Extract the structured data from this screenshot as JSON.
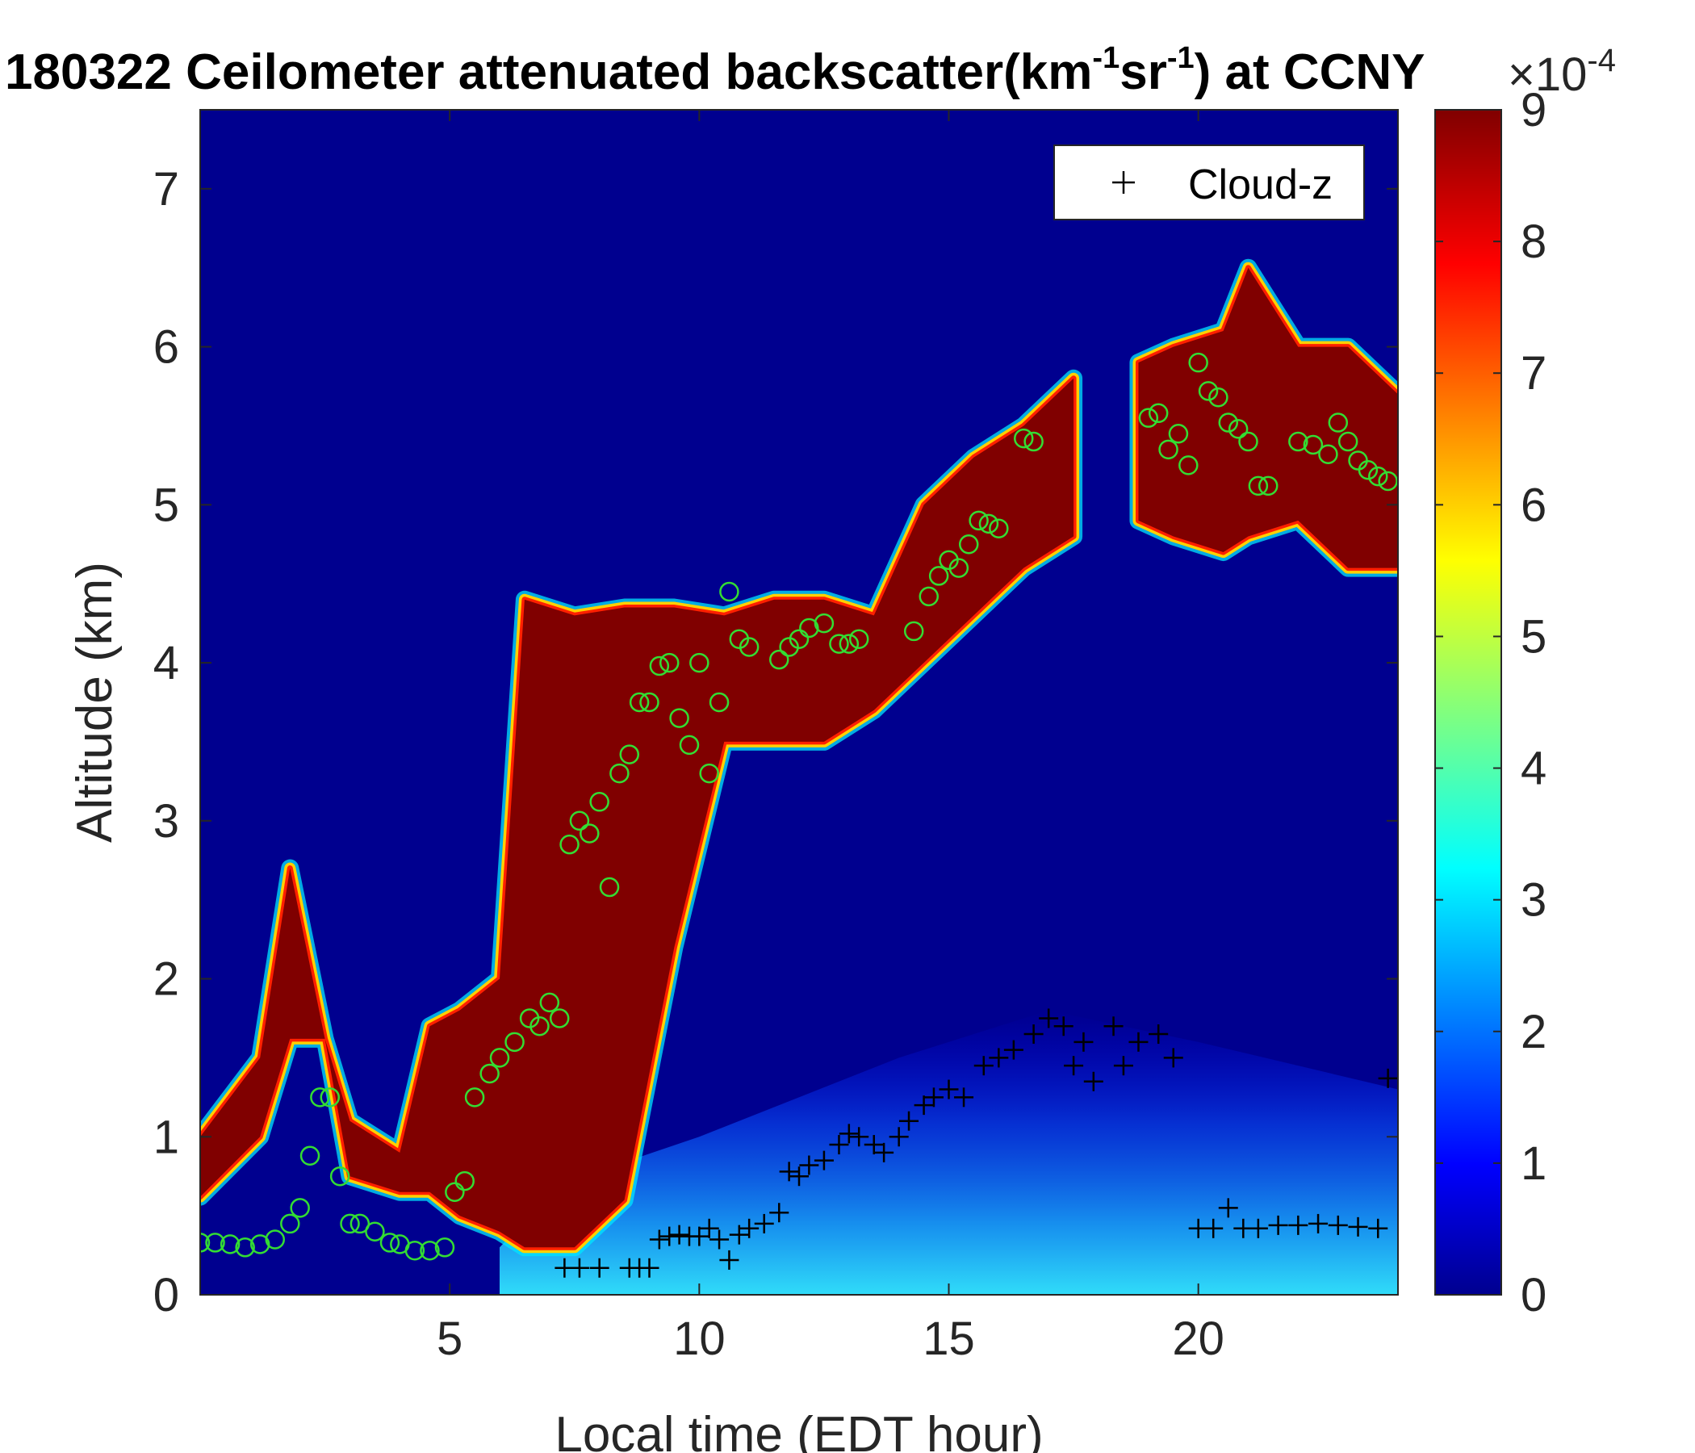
{
  "chart_data": {
    "type": "heatmap",
    "title": {
      "prefix": "180322 Ceilometer attenuated backscatter(km",
      "exp1": "-1",
      "mid": "sr",
      "exp2": "-1",
      "suffix": ") at CCNY"
    },
    "xlabel": "Local time (EDT hour)",
    "ylabel": "Altitude (km)",
    "xlim": [
      0,
      24
    ],
    "ylim": [
      0,
      7.5
    ],
    "xticks": [
      5,
      10,
      15,
      20
    ],
    "yticks": [
      0,
      1,
      2,
      3,
      4,
      5,
      6,
      7
    ],
    "colorbar": {
      "colormap": "jet",
      "clim": [
        0,
        9
      ],
      "ticks": [
        0,
        1,
        2,
        3,
        4,
        5,
        6,
        7,
        8,
        9
      ],
      "multiplier_base": "×10",
      "multiplier_exp": "-4"
    },
    "legend": {
      "label": "Cloud-z",
      "marker": "+",
      "location": "top-right"
    },
    "colors": {
      "background": "#00008f",
      "cloud_marker": "#000000",
      "pbl_marker": "#33dd33"
    },
    "layers": {
      "cloud_layer": [
        [
          0,
          0.62,
          1.0
        ],
        [
          1.2,
          1.0,
          1.5
        ],
        [
          1.8,
          1.62,
          2.7
        ],
        [
          2.5,
          1.62,
          1.62
        ],
        [
          3.0,
          0.75,
          1.1
        ],
        [
          4.0,
          0.65,
          0.9
        ],
        [
          4.6,
          0.65,
          1.7
        ],
        [
          5.2,
          0.5,
          1.8
        ],
        [
          6.0,
          0.4,
          2.0
        ],
        [
          6.5,
          0.3,
          4.4
        ],
        [
          7.5,
          0.3,
          4.3
        ],
        [
          8.5,
          0.6,
          4.35
        ],
        [
          9.5,
          2.2,
          4.35
        ],
        [
          10.5,
          3.5,
          4.3
        ],
        [
          11.5,
          3.5,
          4.4
        ],
        [
          12.5,
          3.5,
          4.4
        ],
        [
          13.5,
          3.7,
          4.3
        ],
        [
          14.5,
          4.0,
          5.0
        ],
        [
          15.5,
          4.3,
          5.3
        ],
        [
          16.5,
          4.6,
          5.5
        ],
        [
          17.5,
          4.8,
          5.8
        ]
      ],
      "high_cloud": [
        [
          18.8,
          4.9,
          5.9
        ],
        [
          19.5,
          4.8,
          6.0
        ],
        [
          20.5,
          4.7,
          6.1
        ],
        [
          21.0,
          4.8,
          6.5
        ],
        [
          22.0,
          4.9,
          6.0
        ],
        [
          23.0,
          4.6,
          6.0
        ],
        [
          24.0,
          4.6,
          5.7
        ]
      ],
      "aerosol_layer_top_km": [
        [
          6,
          0.3
        ],
        [
          7.2,
          0.7
        ],
        [
          10,
          1.0
        ],
        [
          14,
          1.5
        ],
        [
          17,
          1.8
        ],
        [
          20,
          1.6
        ],
        [
          24,
          1.3
        ]
      ]
    },
    "series": [
      {
        "name": "Cloud-z",
        "marker": "+",
        "points": [
          [
            7.3,
            0.17
          ],
          [
            7.6,
            0.17
          ],
          [
            8.0,
            0.17
          ],
          [
            8.6,
            0.17
          ],
          [
            8.8,
            0.17
          ],
          [
            9.0,
            0.17
          ],
          [
            9.2,
            0.35
          ],
          [
            9.4,
            0.37
          ],
          [
            9.6,
            0.38
          ],
          [
            9.8,
            0.37
          ],
          [
            10.0,
            0.37
          ],
          [
            10.2,
            0.42
          ],
          [
            10.4,
            0.35
          ],
          [
            10.6,
            0.22
          ],
          [
            10.8,
            0.38
          ],
          [
            11.0,
            0.42
          ],
          [
            11.3,
            0.45
          ],
          [
            11.6,
            0.52
          ],
          [
            11.8,
            0.78
          ],
          [
            12.0,
            0.75
          ],
          [
            12.2,
            0.82
          ],
          [
            12.5,
            0.85
          ],
          [
            12.8,
            0.95
          ],
          [
            13.0,
            1.02
          ],
          [
            13.2,
            1.0
          ],
          [
            13.5,
            0.95
          ],
          [
            13.7,
            0.9
          ],
          [
            14.0,
            1.0
          ],
          [
            14.2,
            1.1
          ],
          [
            14.5,
            1.2
          ],
          [
            14.7,
            1.25
          ],
          [
            15.0,
            1.3
          ],
          [
            15.3,
            1.25
          ],
          [
            15.7,
            1.45
          ],
          [
            16.0,
            1.5
          ],
          [
            16.3,
            1.55
          ],
          [
            16.7,
            1.65
          ],
          [
            17.0,
            1.75
          ],
          [
            17.3,
            1.7
          ],
          [
            17.5,
            1.45
          ],
          [
            17.7,
            1.6
          ],
          [
            17.9,
            1.35
          ],
          [
            18.3,
            1.7
          ],
          [
            18.5,
            1.45
          ],
          [
            18.8,
            1.6
          ],
          [
            19.2,
            1.65
          ],
          [
            19.5,
            1.5
          ],
          [
            20.0,
            0.42
          ],
          [
            20.3,
            0.42
          ],
          [
            20.6,
            0.55
          ],
          [
            20.9,
            0.42
          ],
          [
            21.2,
            0.42
          ],
          [
            21.6,
            0.44
          ],
          [
            22.0,
            0.44
          ],
          [
            22.4,
            0.45
          ],
          [
            22.8,
            0.44
          ],
          [
            23.2,
            0.43
          ],
          [
            23.6,
            0.42
          ],
          [
            23.8,
            1.37
          ]
        ]
      },
      {
        "name": "",
        "marker": "o",
        "points": [
          [
            0.0,
            0.33
          ],
          [
            0.3,
            0.33
          ],
          [
            0.6,
            0.32
          ],
          [
            0.9,
            0.3
          ],
          [
            1.2,
            0.32
          ],
          [
            1.5,
            0.35
          ],
          [
            1.8,
            0.45
          ],
          [
            2.0,
            0.55
          ],
          [
            2.2,
            0.88
          ],
          [
            2.4,
            1.25
          ],
          [
            2.6,
            1.25
          ],
          [
            2.8,
            0.75
          ],
          [
            3.0,
            0.45
          ],
          [
            3.2,
            0.45
          ],
          [
            3.5,
            0.4
          ],
          [
            3.8,
            0.33
          ],
          [
            4.0,
            0.32
          ],
          [
            4.3,
            0.28
          ],
          [
            4.6,
            0.28
          ],
          [
            4.9,
            0.3
          ],
          [
            5.1,
            0.65
          ],
          [
            5.3,
            0.72
          ],
          [
            5.5,
            1.25
          ],
          [
            5.8,
            1.4
          ],
          [
            6.0,
            1.5
          ],
          [
            6.3,
            1.6
          ],
          [
            6.6,
            1.75
          ],
          [
            6.8,
            1.7
          ],
          [
            7.0,
            1.85
          ],
          [
            7.2,
            1.75
          ],
          [
            7.4,
            2.85
          ],
          [
            7.6,
            3.0
          ],
          [
            7.8,
            2.92
          ],
          [
            8.0,
            3.12
          ],
          [
            8.2,
            2.58
          ],
          [
            8.4,
            3.3
          ],
          [
            8.6,
            3.42
          ],
          [
            8.8,
            3.75
          ],
          [
            9.0,
            3.75
          ],
          [
            9.2,
            3.98
          ],
          [
            9.4,
            4.0
          ],
          [
            9.6,
            3.65
          ],
          [
            9.8,
            3.48
          ],
          [
            10.0,
            4.0
          ],
          [
            10.2,
            3.3
          ],
          [
            10.4,
            3.75
          ],
          [
            10.6,
            4.45
          ],
          [
            10.8,
            4.15
          ],
          [
            11.0,
            4.1
          ],
          [
            11.6,
            4.02
          ],
          [
            11.8,
            4.1
          ],
          [
            12.0,
            4.15
          ],
          [
            12.2,
            4.22
          ],
          [
            12.5,
            4.25
          ],
          [
            12.8,
            4.12
          ],
          [
            13.0,
            4.12
          ],
          [
            13.2,
            4.15
          ],
          [
            14.3,
            4.2
          ],
          [
            14.6,
            4.42
          ],
          [
            14.8,
            4.55
          ],
          [
            15.0,
            4.65
          ],
          [
            15.2,
            4.6
          ],
          [
            15.4,
            4.75
          ],
          [
            15.6,
            4.9
          ],
          [
            15.8,
            4.88
          ],
          [
            16.0,
            4.85
          ],
          [
            16.5,
            5.42
          ],
          [
            16.7,
            5.4
          ],
          [
            19.0,
            5.55
          ],
          [
            19.2,
            5.58
          ],
          [
            19.4,
            5.35
          ],
          [
            19.6,
            5.45
          ],
          [
            19.8,
            5.25
          ],
          [
            20.0,
            5.9
          ],
          [
            20.2,
            5.72
          ],
          [
            20.4,
            5.68
          ],
          [
            20.6,
            5.52
          ],
          [
            20.8,
            5.48
          ],
          [
            21.0,
            5.4
          ],
          [
            21.2,
            5.12
          ],
          [
            21.4,
            5.12
          ],
          [
            22.0,
            5.4
          ],
          [
            22.3,
            5.38
          ],
          [
            22.6,
            5.32
          ],
          [
            22.8,
            5.52
          ],
          [
            23.0,
            5.4
          ],
          [
            23.2,
            5.28
          ],
          [
            23.4,
            5.22
          ],
          [
            23.6,
            5.18
          ],
          [
            23.8,
            5.15
          ]
        ]
      }
    ]
  }
}
